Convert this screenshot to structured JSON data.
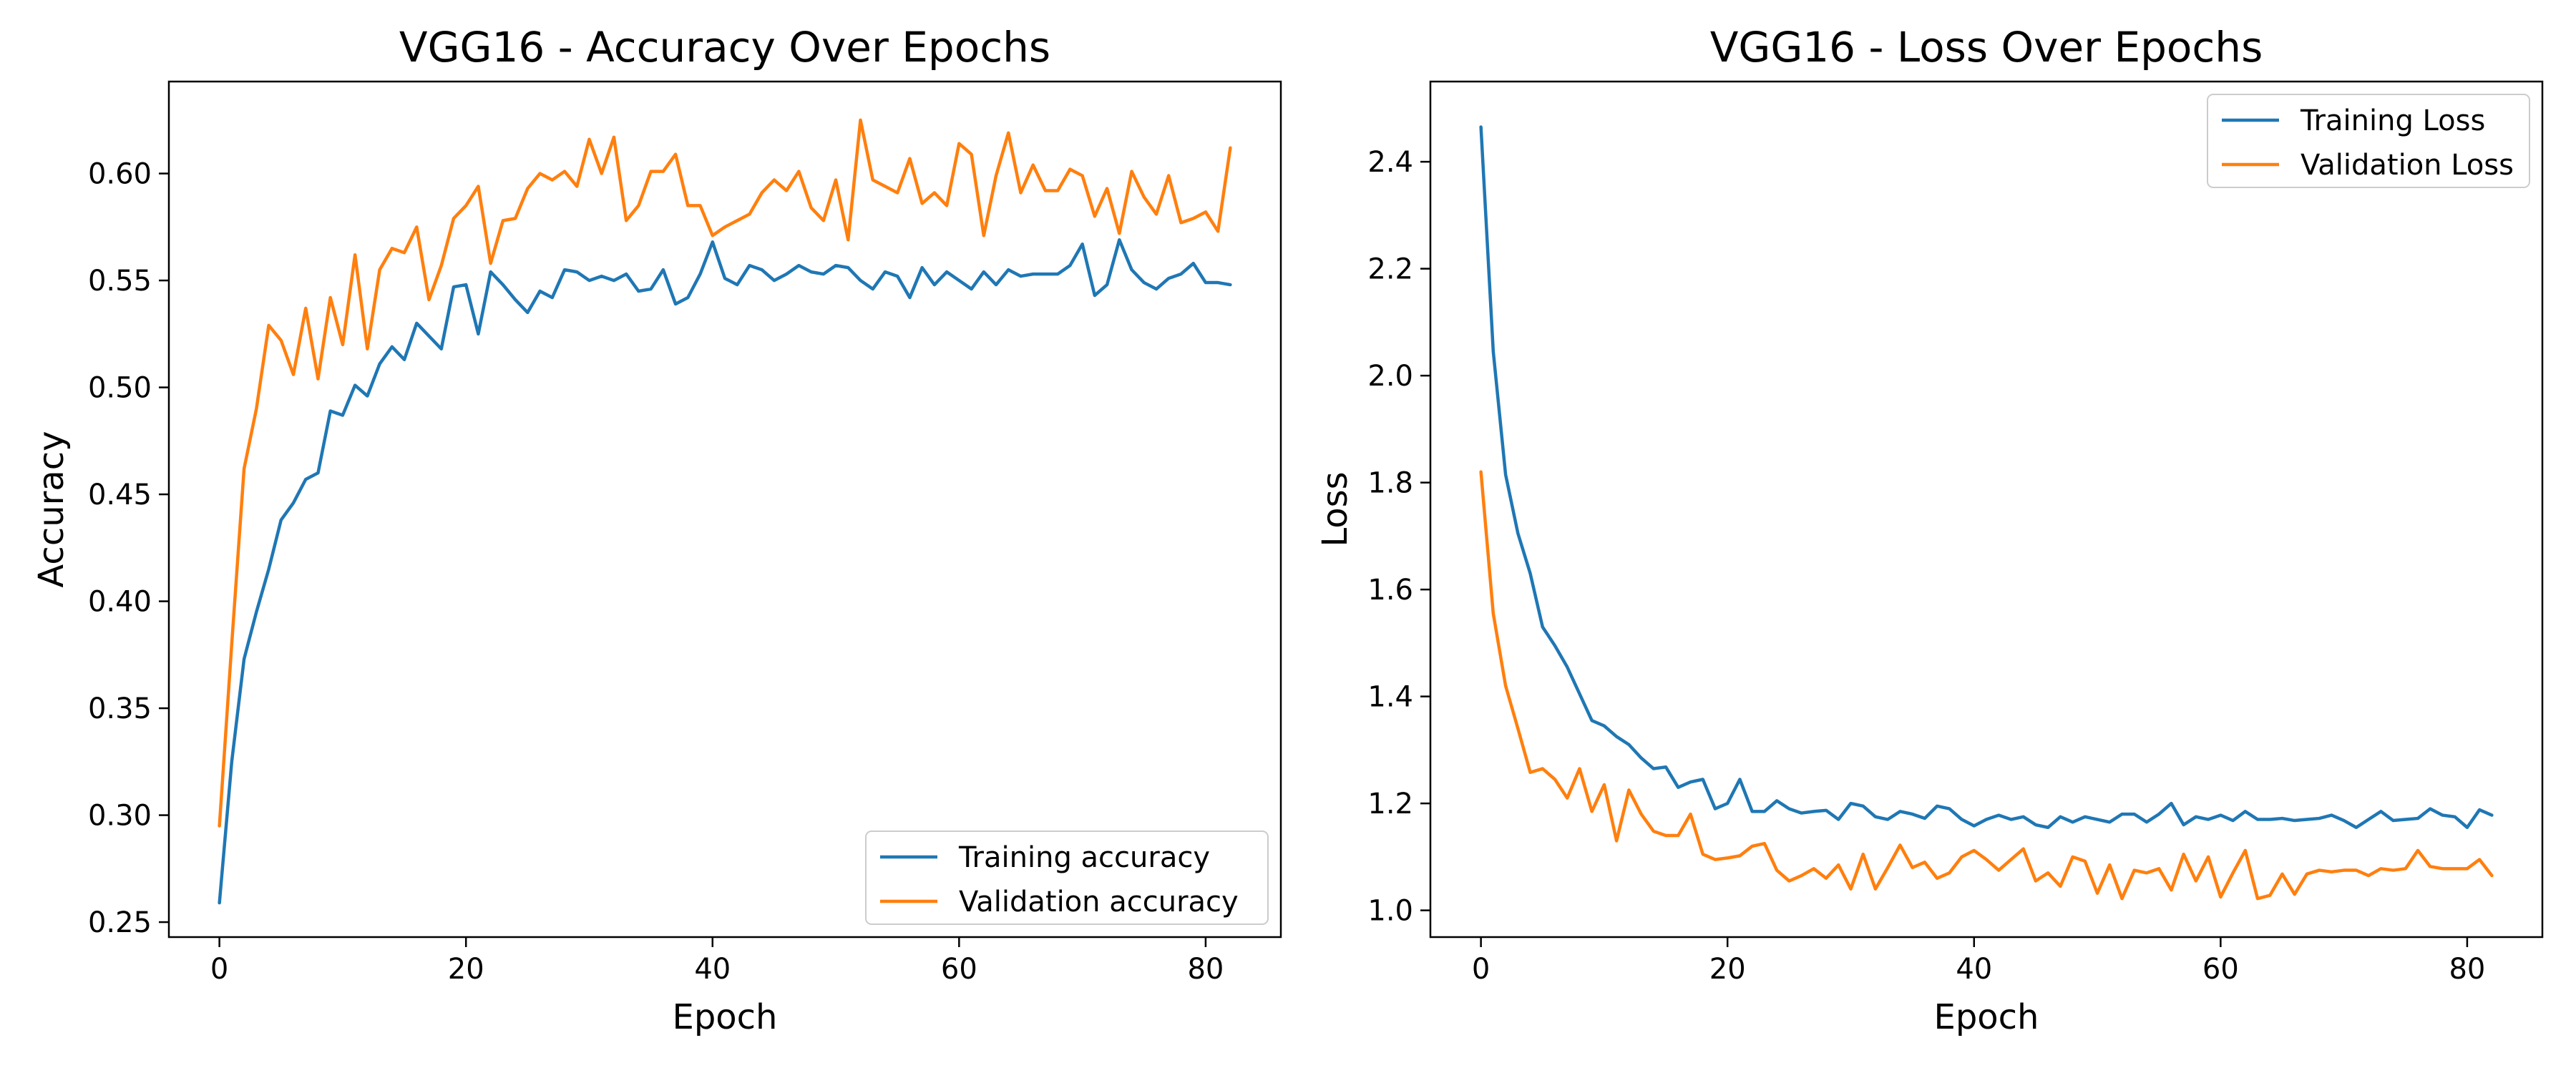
{
  "chart_data": [
    {
      "type": "line",
      "title": "VGG16 - Accuracy Over Epochs",
      "xlabel": "Epoch",
      "ylabel": "Accuracy",
      "xlim": [
        -4.1,
        86.1
      ],
      "ylim": [
        0.243,
        0.643
      ],
      "xticks": [
        0,
        20,
        40,
        60,
        80
      ],
      "yticks": [
        0.25,
        0.3,
        0.35,
        0.4,
        0.45,
        0.5,
        0.55,
        0.6
      ],
      "ytick_decimals": 2,
      "legend_position": "lower-right",
      "grid": false,
      "x_start": 0,
      "series": [
        {
          "name": "Training accuracy",
          "color": "#1f77b4",
          "values": [
            0.259,
            0.325,
            0.373,
            0.395,
            0.415,
            0.438,
            0.446,
            0.457,
            0.46,
            0.489,
            0.487,
            0.501,
            0.496,
            0.511,
            0.519,
            0.513,
            0.53,
            0.524,
            0.518,
            0.547,
            0.548,
            0.525,
            0.554,
            0.548,
            0.541,
            0.535,
            0.545,
            0.542,
            0.555,
            0.554,
            0.55,
            0.552,
            0.55,
            0.553,
            0.545,
            0.546,
            0.555,
            0.539,
            0.542,
            0.553,
            0.568,
            0.551,
            0.548,
            0.557,
            0.555,
            0.55,
            0.553,
            0.557,
            0.554,
            0.553,
            0.557,
            0.556,
            0.55,
            0.546,
            0.554,
            0.552,
            0.542,
            0.556,
            0.548,
            0.554,
            0.55,
            0.546,
            0.554,
            0.548,
            0.555,
            0.552,
            0.553,
            0.553,
            0.553,
            0.557,
            0.567,
            0.543,
            0.548,
            0.569,
            0.555,
            0.549,
            0.546,
            0.551,
            0.553,
            0.558,
            0.549,
            0.549,
            0.548
          ]
        },
        {
          "name": "Validation accuracy",
          "color": "#ff7f0e",
          "values": [
            0.295,
            0.38,
            0.462,
            0.49,
            0.529,
            0.522,
            0.506,
            0.537,
            0.504,
            0.542,
            0.52,
            0.562,
            0.518,
            0.555,
            0.565,
            0.563,
            0.575,
            0.541,
            0.557,
            0.579,
            0.585,
            0.594,
            0.558,
            0.578,
            0.579,
            0.593,
            0.6,
            0.597,
            0.601,
            0.594,
            0.616,
            0.6,
            0.617,
            0.578,
            0.585,
            0.601,
            0.601,
            0.609,
            0.585,
            0.585,
            0.571,
            0.575,
            0.578,
            0.581,
            0.591,
            0.597,
            0.592,
            0.601,
            0.584,
            0.578,
            0.597,
            0.569,
            0.625,
            0.597,
            0.594,
            0.591,
            0.607,
            0.586,
            0.591,
            0.585,
            0.614,
            0.609,
            0.571,
            0.599,
            0.619,
            0.591,
            0.604,
            0.592,
            0.592,
            0.602,
            0.599,
            0.58,
            0.593,
            0.572,
            0.601,
            0.589,
            0.581,
            0.599,
            0.577,
            0.579,
            0.582,
            0.573,
            0.612
          ]
        }
      ]
    },
    {
      "type": "line",
      "title": "VGG16 - Loss Over Epochs",
      "xlabel": "Epoch",
      "ylabel": "Loss",
      "xlim": [
        -4.1,
        86.1
      ],
      "ylim": [
        0.95,
        2.55
      ],
      "xticks": [
        0,
        20,
        40,
        60,
        80
      ],
      "yticks": [
        1.0,
        1.2,
        1.4,
        1.6,
        1.8,
        2.0,
        2.2,
        2.4
      ],
      "ytick_decimals": 1,
      "legend_position": "upper-right",
      "grid": false,
      "x_start": 0,
      "series": [
        {
          "name": "Training Loss",
          "color": "#1f77b4",
          "values": [
            2.465,
            2.045,
            1.815,
            1.705,
            1.63,
            1.53,
            1.495,
            1.455,
            1.405,
            1.355,
            1.345,
            1.325,
            1.31,
            1.285,
            1.265,
            1.268,
            1.23,
            1.24,
            1.245,
            1.19,
            1.2,
            1.245,
            1.185,
            1.185,
            1.205,
            1.19,
            1.182,
            1.185,
            1.187,
            1.17,
            1.2,
            1.195,
            1.175,
            1.17,
            1.185,
            1.18,
            1.172,
            1.195,
            1.19,
            1.17,
            1.158,
            1.17,
            1.178,
            1.17,
            1.175,
            1.16,
            1.155,
            1.175,
            1.165,
            1.175,
            1.17,
            1.165,
            1.18,
            1.18,
            1.165,
            1.18,
            1.2,
            1.16,
            1.175,
            1.17,
            1.178,
            1.168,
            1.185,
            1.17,
            1.17,
            1.172,
            1.168,
            1.17,
            1.172,
            1.178,
            1.168,
            1.155,
            1.17,
            1.185,
            1.168,
            1.17,
            1.172,
            1.19,
            1.178,
            1.175,
            1.155,
            1.188,
            1.178
          ]
        },
        {
          "name": "Validation Loss",
          "color": "#ff7f0e",
          "values": [
            1.82,
            1.555,
            1.42,
            1.34,
            1.258,
            1.265,
            1.245,
            1.21,
            1.265,
            1.185,
            1.235,
            1.13,
            1.225,
            1.18,
            1.148,
            1.14,
            1.14,
            1.18,
            1.105,
            1.095,
            1.098,
            1.102,
            1.12,
            1.125,
            1.075,
            1.055,
            1.065,
            1.078,
            1.06,
            1.085,
            1.04,
            1.105,
            1.04,
            1.08,
            1.122,
            1.08,
            1.09,
            1.06,
            1.07,
            1.1,
            1.112,
            1.095,
            1.075,
            1.095,
            1.115,
            1.055,
            1.07,
            1.045,
            1.1,
            1.092,
            1.032,
            1.085,
            1.022,
            1.075,
            1.07,
            1.078,
            1.038,
            1.105,
            1.055,
            1.1,
            1.025,
            1.07,
            1.112,
            1.022,
            1.028,
            1.068,
            1.03,
            1.068,
            1.075,
            1.072,
            1.075,
            1.075,
            1.065,
            1.078,
            1.075,
            1.078,
            1.112,
            1.082,
            1.078,
            1.078,
            1.078,
            1.095,
            1.065
          ]
        }
      ]
    }
  ]
}
